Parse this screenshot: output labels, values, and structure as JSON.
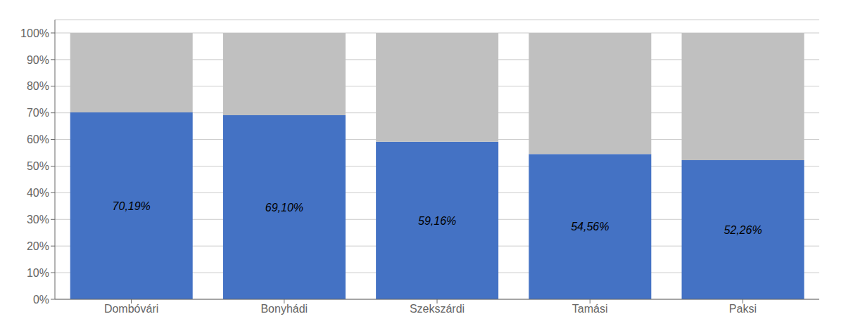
{
  "chart_data": {
    "type": "bar",
    "stacked": true,
    "grid": true,
    "categories": [
      "Dombóvári",
      "Bonyhádi",
      "Szekszárdi",
      "Tamási",
      "Paksi"
    ],
    "series": [
      {
        "color": "#4472C4",
        "values": [
          70.19,
          69.1,
          59.16,
          54.56,
          52.26
        ],
        "data_labels": true,
        "value_labels": [
          "70,19%",
          "69,10%",
          "59,16%",
          "54,56%",
          "52,26%"
        ]
      },
      {
        "color": "#C0C0C0",
        "values": [
          29.81,
          30.9,
          40.84,
          45.44,
          47.74
        ]
      }
    ],
    "ylim": [
      0,
      105
    ],
    "yticks": [
      {
        "value": 0,
        "label": "0%"
      },
      {
        "value": 10,
        "label": "10%"
      },
      {
        "value": 20,
        "label": "20%"
      },
      {
        "value": 30,
        "label": "30%"
      },
      {
        "value": 40,
        "label": "40%"
      },
      {
        "value": 50,
        "label": "50%"
      },
      {
        "value": 60,
        "label": "60%"
      },
      {
        "value": 70,
        "label": "70%"
      },
      {
        "value": 80,
        "label": "80%"
      },
      {
        "value": 90,
        "label": "90%"
      },
      {
        "value": 100,
        "label": "100%"
      }
    ]
  }
}
